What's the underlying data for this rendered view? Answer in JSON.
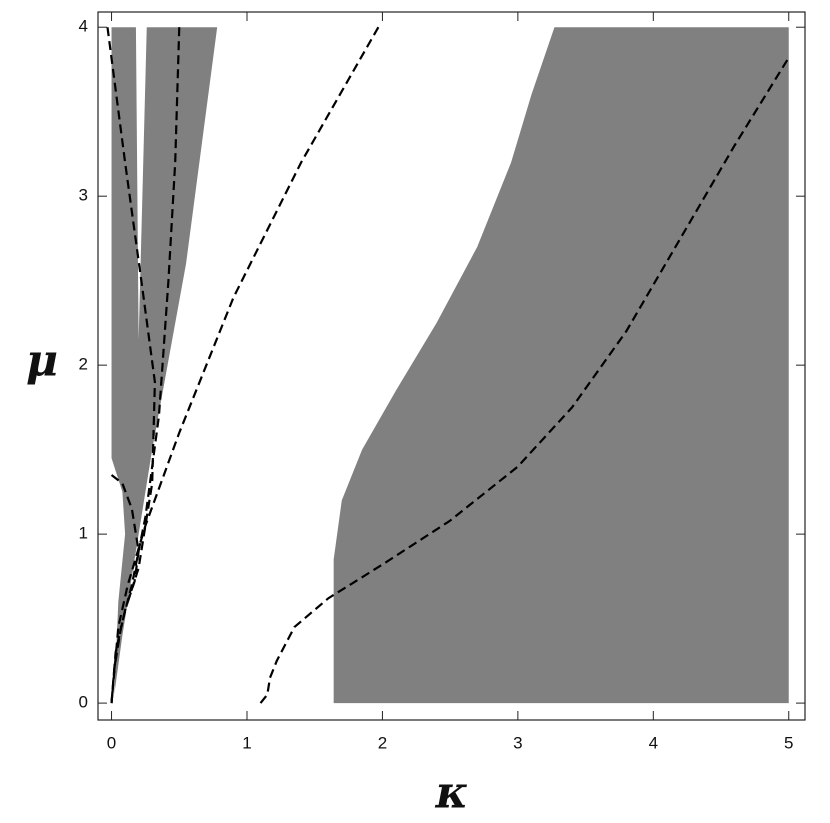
{
  "chart_data": {
    "type": "region-plot",
    "xlabel": "κ",
    "ylabel": "μ",
    "xlim": [
      -0.1,
      5.12
    ],
    "ylim": [
      -0.1,
      4.09
    ],
    "xticks": [
      0,
      1,
      2,
      3,
      4,
      5
    ],
    "yticks": [
      0,
      1,
      2,
      3,
      4
    ],
    "regions": [
      {
        "color": "#808080",
        "x": [
          0,
          0.18,
          0.2,
          0.26,
          0.78,
          0.55,
          0.3,
          0.15,
          0.08,
          0.02,
          0.05,
          0.1,
          0.08,
          0
        ],
        "y": [
          4,
          4,
          2.15,
          4,
          4,
          2.6,
          1.5,
          0.75,
          0.4,
          0.05,
          0.6,
          1.0,
          1.25,
          1.45
        ]
      },
      {
        "color": "#808080",
        "x": [
          1.64,
          1.64,
          1.7,
          1.85,
          2.1,
          2.4,
          2.7,
          2.95,
          3.1,
          3.27,
          5,
          5
        ],
        "y": [
          0,
          0.85,
          1.2,
          1.5,
          1.85,
          2.25,
          2.7,
          3.2,
          3.6,
          4,
          4,
          0
        ]
      }
    ],
    "curves": [
      {
        "color": "#000000",
        "x": [
          -0.03,
          0.1,
          0.22,
          0.32,
          0.3,
          0.2,
          0.1,
          0.03,
          0
        ],
        "y": [
          4,
          3.2,
          2.5,
          1.9,
          1.3,
          0.8,
          0.55,
          0.3,
          0
        ]
      },
      {
        "color": "#000000",
        "x": [
          0.5,
          0.47,
          0.42,
          0.35,
          0.25,
          0.15,
          0.07,
          0.02,
          0
        ],
        "y": [
          4,
          3.2,
          2.5,
          1.7,
          1.1,
          0.7,
          0.45,
          0.2,
          0
        ]
      },
      {
        "color": "#000000",
        "x": [
          1.97,
          1.4,
          0.9,
          0.5,
          0.25,
          0.12,
          0.05,
          0
        ],
        "y": [
          4,
          3.2,
          2.4,
          1.6,
          1.05,
          0.7,
          0.45,
          0
        ]
      },
      {
        "color": "#000000",
        "x": [
          0,
          0.08,
          0.15,
          0.2,
          0.17,
          0.12
        ],
        "y": [
          1.35,
          1.3,
          1.15,
          0.9,
          0.72,
          0.6
        ]
      },
      {
        "color": "#000000",
        "x": [
          1.1,
          1.15,
          1.17,
          1.22,
          1.35,
          1.6,
          2.0,
          2.5,
          3.0,
          3.4,
          3.8,
          4.2,
          4.6,
          5
        ],
        "y": [
          0,
          0.05,
          0.15,
          0.25,
          0.45,
          0.62,
          0.82,
          1.08,
          1.4,
          1.75,
          2.2,
          2.75,
          3.3,
          3.82
        ]
      }
    ],
    "dashed": true
  }
}
